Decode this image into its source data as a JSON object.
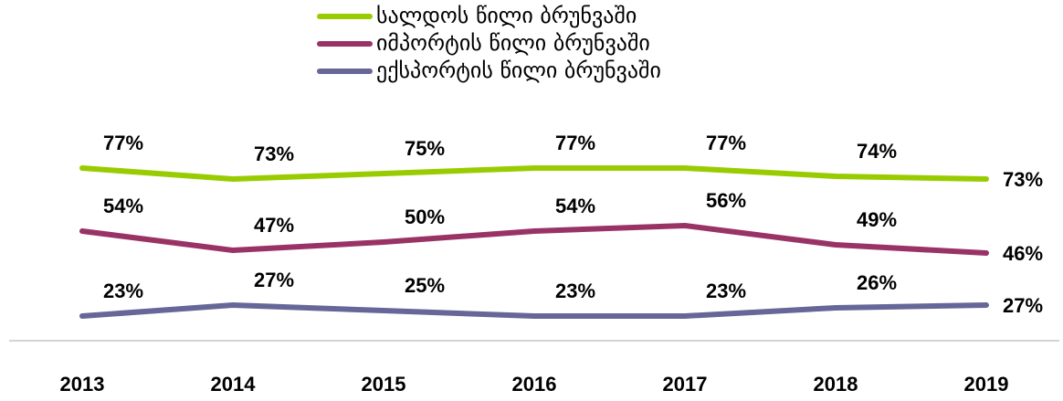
{
  "chart_data": {
    "type": "line",
    "categories": [
      "2013",
      "2014",
      "2015",
      "2016",
      "2017",
      "2018",
      "2019"
    ],
    "series": [
      {
        "name": "სალდოს წილი ბრუნვაში",
        "color": "#99cc00",
        "values": [
          77,
          73,
          75,
          77,
          77,
          74,
          73
        ],
        "value_labels": [
          "77%",
          "73%",
          "75%",
          "77%",
          "77%",
          "74%",
          "73%"
        ]
      },
      {
        "name": "იმპორტის წილი ბრუნვაში",
        "color": "#993366",
        "values": [
          54,
          47,
          50,
          54,
          56,
          49,
          46
        ],
        "value_labels": [
          "54%",
          "47%",
          "50%",
          "54%",
          "56%",
          "49%",
          "46%"
        ]
      },
      {
        "name": "ექსპორტის წილი ბრუნვაში",
        "color": "#666699",
        "values": [
          23,
          27,
          25,
          23,
          23,
          26,
          27
        ],
        "value_labels": [
          "23%",
          "27%",
          "25%",
          "23%",
          "23%",
          "26%",
          "27%"
        ]
      }
    ],
    "ylim": [
      15,
      85
    ]
  }
}
